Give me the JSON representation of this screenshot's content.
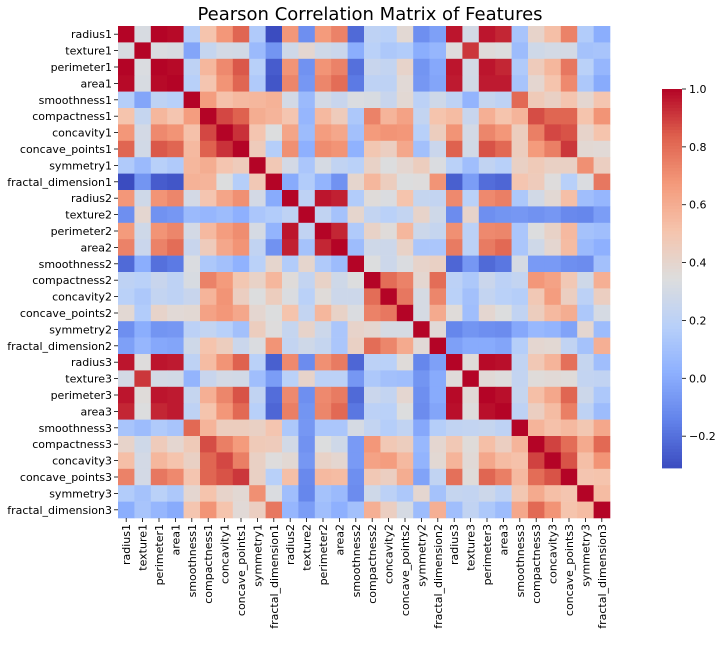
{
  "chart_data": {
    "type": "heatmap",
    "title": "Pearson Correlation Matrix of Features",
    "labels": [
      "radius1",
      "texture1",
      "perimeter1",
      "area1",
      "smoothness1",
      "compactness1",
      "concavity1",
      "concave_points1",
      "symmetry1",
      "fractal_dimension1",
      "radius2",
      "texture2",
      "perimeter2",
      "area2",
      "smoothness2",
      "compactness2",
      "concavity2",
      "concave_points2",
      "symmetry2",
      "fractal_dimension2",
      "radius3",
      "texture3",
      "perimeter3",
      "area3",
      "smoothness3",
      "compactness3",
      "concavity3",
      "concave_points3",
      "symmetry3",
      "fractal_dimension3"
    ],
    "colorbar": {
      "min": -0.31,
      "max": 1.0,
      "ticks": [
        -0.2,
        0.0,
        0.2,
        0.4,
        0.6,
        0.8,
        1.0
      ],
      "tick_labels": [
        "−0.2",
        "0.0",
        "0.2",
        "0.4",
        "0.6",
        "0.8",
        "1.0"
      ]
    },
    "colormap": "coolwarm",
    "matrix": [
      [
        1.0,
        0.32,
        1.0,
        0.99,
        0.17,
        0.51,
        0.68,
        0.82,
        0.15,
        -0.31,
        0.68,
        -0.1,
        0.67,
        0.74,
        -0.22,
        0.21,
        0.19,
        0.38,
        -0.1,
        -0.04,
        0.97,
        0.3,
        0.97,
        0.94,
        0.12,
        0.41,
        0.53,
        0.74,
        0.16,
        0.01
      ],
      [
        0.32,
        1.0,
        0.33,
        0.32,
        -0.02,
        0.24,
        0.3,
        0.29,
        0.07,
        -0.08,
        0.28,
        0.39,
        0.28,
        0.26,
        0.01,
        0.19,
        0.14,
        0.16,
        0.01,
        0.05,
        0.35,
        0.91,
        0.36,
        0.34,
        0.08,
        0.28,
        0.3,
        0.3,
        0.11,
        0.12
      ],
      [
        1.0,
        0.33,
        1.0,
        0.99,
        0.21,
        0.56,
        0.72,
        0.85,
        0.18,
        -0.26,
        0.69,
        -0.09,
        0.69,
        0.74,
        -0.2,
        0.25,
        0.23,
        0.41,
        -0.08,
        -0.01,
        0.97,
        0.3,
        0.97,
        0.94,
        0.15,
        0.46,
        0.56,
        0.77,
        0.19,
        0.05
      ],
      [
        0.99,
        0.32,
        0.99,
        1.0,
        0.18,
        0.5,
        0.69,
        0.82,
        0.15,
        -0.28,
        0.73,
        -0.07,
        0.73,
        0.8,
        -0.17,
        0.21,
        0.21,
        0.37,
        -0.07,
        -0.02,
        0.96,
        0.29,
        0.96,
        0.96,
        0.12,
        0.39,
        0.51,
        0.72,
        0.14,
        0.0
      ],
      [
        0.17,
        -0.02,
        0.21,
        0.18,
        1.0,
        0.66,
        0.52,
        0.55,
        0.56,
        0.58,
        0.3,
        0.07,
        0.3,
        0.25,
        0.33,
        0.32,
        0.25,
        0.38,
        0.2,
        0.28,
        0.21,
        0.04,
        0.24,
        0.21,
        0.81,
        0.47,
        0.43,
        0.5,
        0.39,
        0.5
      ],
      [
        0.51,
        0.24,
        0.56,
        0.5,
        0.66,
        1.0,
        0.88,
        0.83,
        0.6,
        0.57,
        0.5,
        0.05,
        0.55,
        0.46,
        0.14,
        0.74,
        0.57,
        0.64,
        0.23,
        0.51,
        0.54,
        0.25,
        0.59,
        0.51,
        0.57,
        0.87,
        0.82,
        0.82,
        0.51,
        0.69
      ],
      [
        0.68,
        0.3,
        0.72,
        0.69,
        0.52,
        0.88,
        1.0,
        0.92,
        0.5,
        0.34,
        0.63,
        0.08,
        0.66,
        0.62,
        0.1,
        0.67,
        0.69,
        0.68,
        0.18,
        0.45,
        0.69,
        0.3,
        0.73,
        0.68,
        0.45,
        0.75,
        0.88,
        0.86,
        0.41,
        0.51
      ],
      [
        0.82,
        0.29,
        0.85,
        0.82,
        0.55,
        0.83,
        0.92,
        1.0,
        0.46,
        0.17,
        0.7,
        0.02,
        0.71,
        0.69,
        0.03,
        0.49,
        0.44,
        0.62,
        0.1,
        0.26,
        0.83,
        0.29,
        0.86,
        0.81,
        0.45,
        0.67,
        0.75,
        0.91,
        0.38,
        0.37
      ],
      [
        0.15,
        0.07,
        0.18,
        0.15,
        0.56,
        0.6,
        0.5,
        0.46,
        1.0,
        0.48,
        0.3,
        0.13,
        0.31,
        0.22,
        0.19,
        0.42,
        0.34,
        0.39,
        0.45,
        0.33,
        0.19,
        0.09,
        0.22,
        0.18,
        0.43,
        0.47,
        0.43,
        0.43,
        0.7,
        0.44
      ],
      [
        -0.31,
        -0.08,
        -0.26,
        -0.28,
        0.58,
        0.57,
        0.34,
        0.17,
        0.48,
        1.0,
        0.0,
        0.16,
        0.04,
        -0.09,
        0.4,
        0.56,
        0.45,
        0.34,
        0.35,
        0.69,
        -0.25,
        -0.05,
        -0.21,
        -0.23,
        0.5,
        0.46,
        0.35,
        0.18,
        0.33,
        0.77
      ],
      [
        0.68,
        0.28,
        0.69,
        0.73,
        0.3,
        0.5,
        0.63,
        0.7,
        0.3,
        0.0,
        1.0,
        0.21,
        0.97,
        0.95,
        0.16,
        0.36,
        0.33,
        0.51,
        0.24,
        0.23,
        0.72,
        0.19,
        0.72,
        0.75,
        0.14,
        0.29,
        0.38,
        0.53,
        0.09,
        0.05
      ],
      [
        -0.1,
        0.39,
        -0.09,
        -0.07,
        0.07,
        0.05,
        0.08,
        0.02,
        0.13,
        0.16,
        0.21,
        1.0,
        0.22,
        0.11,
        0.4,
        0.23,
        0.19,
        0.23,
        0.41,
        0.28,
        -0.11,
        0.41,
        -0.1,
        -0.08,
        -0.07,
        -0.09,
        -0.07,
        -0.12,
        -0.13,
        -0.05
      ],
      [
        0.67,
        0.28,
        0.69,
        0.73,
        0.3,
        0.55,
        0.66,
        0.71,
        0.31,
        0.04,
        0.97,
        0.22,
        1.0,
        0.94,
        0.15,
        0.42,
        0.36,
        0.56,
        0.27,
        0.24,
        0.7,
        0.2,
        0.72,
        0.73,
        0.13,
        0.34,
        0.42,
        0.55,
        0.11,
        0.09
      ],
      [
        0.74,
        0.26,
        0.74,
        0.8,
        0.25,
        0.46,
        0.62,
        0.69,
        0.22,
        -0.09,
        0.95,
        0.11,
        0.94,
        1.0,
        0.08,
        0.28,
        0.27,
        0.42,
        0.13,
        0.13,
        0.76,
        0.2,
        0.76,
        0.81,
        0.13,
        0.28,
        0.39,
        0.54,
        0.07,
        0.02
      ],
      [
        -0.22,
        0.01,
        -0.2,
        -0.17,
        0.33,
        0.14,
        0.1,
        0.03,
        0.19,
        0.4,
        0.16,
        0.4,
        0.15,
        0.08,
        1.0,
        0.34,
        0.27,
        0.33,
        0.41,
        0.43,
        -0.23,
        -0.07,
        -0.22,
        -0.18,
        0.31,
        -0.06,
        -0.06,
        -0.1,
        -0.11,
        0.1
      ],
      [
        0.21,
        0.19,
        0.25,
        0.21,
        0.32,
        0.74,
        0.67,
        0.49,
        0.42,
        0.56,
        0.36,
        0.23,
        0.42,
        0.28,
        0.34,
        1.0,
        0.8,
        0.74,
        0.39,
        0.8,
        0.2,
        0.14,
        0.26,
        0.2,
        0.23,
        0.68,
        0.64,
        0.48,
        0.28,
        0.59
      ],
      [
        0.19,
        0.14,
        0.23,
        0.21,
        0.25,
        0.57,
        0.69,
        0.44,
        0.34,
        0.45,
        0.33,
        0.19,
        0.36,
        0.27,
        0.27,
        0.8,
        1.0,
        0.77,
        0.31,
        0.73,
        0.19,
        0.1,
        0.23,
        0.19,
        0.17,
        0.48,
        0.66,
        0.44,
        0.2,
        0.44
      ],
      [
        0.38,
        0.16,
        0.41,
        0.37,
        0.38,
        0.64,
        0.68,
        0.62,
        0.39,
        0.34,
        0.51,
        0.23,
        0.56,
        0.42,
        0.33,
        0.74,
        0.77,
        1.0,
        0.31,
        0.61,
        0.36,
        0.09,
        0.39,
        0.34,
        0.22,
        0.45,
        0.55,
        0.6,
        0.14,
        0.31
      ],
      [
        -0.1,
        0.01,
        -0.08,
        -0.07,
        0.2,
        0.23,
        0.18,
        0.1,
        0.45,
        0.35,
        0.24,
        0.41,
        0.27,
        0.13,
        0.41,
        0.39,
        0.31,
        0.31,
        1.0,
        0.37,
        -0.13,
        -0.08,
        -0.1,
        -0.11,
        -0.01,
        0.06,
        0.04,
        -0.03,
        0.39,
        0.08
      ],
      [
        -0.04,
        0.05,
        -0.01,
        -0.02,
        0.28,
        0.51,
        0.45,
        0.26,
        0.33,
        0.69,
        0.23,
        0.28,
        0.24,
        0.13,
        0.43,
        0.8,
        0.73,
        0.61,
        0.37,
        1.0,
        -0.04,
        -0.0,
        -0.0,
        -0.02,
        0.17,
        0.39,
        0.38,
        0.22,
        0.11,
        0.59
      ],
      [
        0.97,
        0.35,
        0.97,
        0.96,
        0.21,
        0.54,
        0.69,
        0.83,
        0.19,
        -0.25,
        0.72,
        -0.11,
        0.7,
        0.76,
        -0.23,
        0.2,
        0.19,
        0.36,
        -0.13,
        -0.04,
        1.0,
        0.36,
        0.99,
        0.98,
        0.22,
        0.48,
        0.57,
        0.79,
        0.24,
        0.09
      ],
      [
        0.3,
        0.91,
        0.3,
        0.29,
        0.04,
        0.25,
        0.3,
        0.29,
        0.09,
        -0.05,
        0.19,
        0.41,
        0.2,
        0.2,
        -0.07,
        0.14,
        0.1,
        0.09,
        -0.08,
        -0.0,
        0.36,
        1.0,
        0.37,
        0.35,
        0.23,
        0.36,
        0.37,
        0.36,
        0.23,
        0.22
      ],
      [
        0.97,
        0.36,
        0.97,
        0.96,
        0.24,
        0.59,
        0.73,
        0.86,
        0.22,
        -0.21,
        0.72,
        -0.1,
        0.72,
        0.76,
        -0.22,
        0.26,
        0.23,
        0.39,
        -0.1,
        -0.0,
        0.99,
        0.37,
        1.0,
        0.98,
        0.24,
        0.53,
        0.62,
        0.82,
        0.27,
        0.14
      ],
      [
        0.94,
        0.34,
        0.94,
        0.96,
        0.21,
        0.51,
        0.68,
        0.81,
        0.18,
        -0.23,
        0.75,
        -0.08,
        0.73,
        0.81,
        -0.18,
        0.2,
        0.19,
        0.34,
        -0.11,
        -0.02,
        0.98,
        0.35,
        0.98,
        1.0,
        0.21,
        0.44,
        0.54,
        0.75,
        0.21,
        0.08
      ],
      [
        0.12,
        0.08,
        0.15,
        0.12,
        0.81,
        0.57,
        0.45,
        0.45,
        0.43,
        0.5,
        0.14,
        -0.07,
        0.13,
        0.13,
        0.31,
        0.23,
        0.17,
        0.22,
        -0.01,
        0.17,
        0.22,
        0.23,
        0.24,
        0.21,
        1.0,
        0.57,
        0.52,
        0.55,
        0.49,
        0.62
      ],
      [
        0.41,
        0.28,
        0.46,
        0.39,
        0.47,
        0.87,
        0.75,
        0.67,
        0.47,
        0.46,
        0.29,
        -0.09,
        0.34,
        0.28,
        -0.06,
        0.68,
        0.48,
        0.45,
        0.06,
        0.39,
        0.48,
        0.36,
        0.53,
        0.44,
        0.57,
        1.0,
        0.89,
        0.8,
        0.61,
        0.81
      ],
      [
        0.53,
        0.3,
        0.56,
        0.51,
        0.43,
        0.82,
        0.88,
        0.75,
        0.43,
        0.35,
        0.38,
        -0.07,
        0.42,
        0.39,
        -0.06,
        0.64,
        0.66,
        0.55,
        0.04,
        0.38,
        0.57,
        0.37,
        0.62,
        0.54,
        0.52,
        0.89,
        1.0,
        0.86,
        0.53,
        0.69
      ],
      [
        0.74,
        0.3,
        0.77,
        0.72,
        0.5,
        0.82,
        0.86,
        0.91,
        0.43,
        0.18,
        0.53,
        -0.12,
        0.55,
        0.54,
        -0.1,
        0.48,
        0.44,
        0.6,
        -0.03,
        0.22,
        0.79,
        0.36,
        0.82,
        0.75,
        0.55,
        0.8,
        0.86,
        1.0,
        0.5,
        0.51
      ],
      [
        0.16,
        0.11,
        0.19,
        0.14,
        0.39,
        0.51,
        0.41,
        0.38,
        0.7,
        0.33,
        0.09,
        -0.13,
        0.11,
        0.07,
        -0.11,
        0.28,
        0.2,
        0.14,
        0.39,
        0.11,
        0.24,
        0.23,
        0.27,
        0.21,
        0.49,
        0.61,
        0.53,
        0.5,
        1.0,
        0.54
      ],
      [
        0.01,
        0.12,
        0.05,
        0.0,
        0.5,
        0.69,
        0.51,
        0.37,
        0.44,
        0.77,
        0.05,
        -0.05,
        0.09,
        0.02,
        0.1,
        0.59,
        0.44,
        0.31,
        0.08,
        0.59,
        0.09,
        0.22,
        0.14,
        0.08,
        0.62,
        0.81,
        0.69,
        0.51,
        0.54,
        1.0
      ]
    ]
  }
}
